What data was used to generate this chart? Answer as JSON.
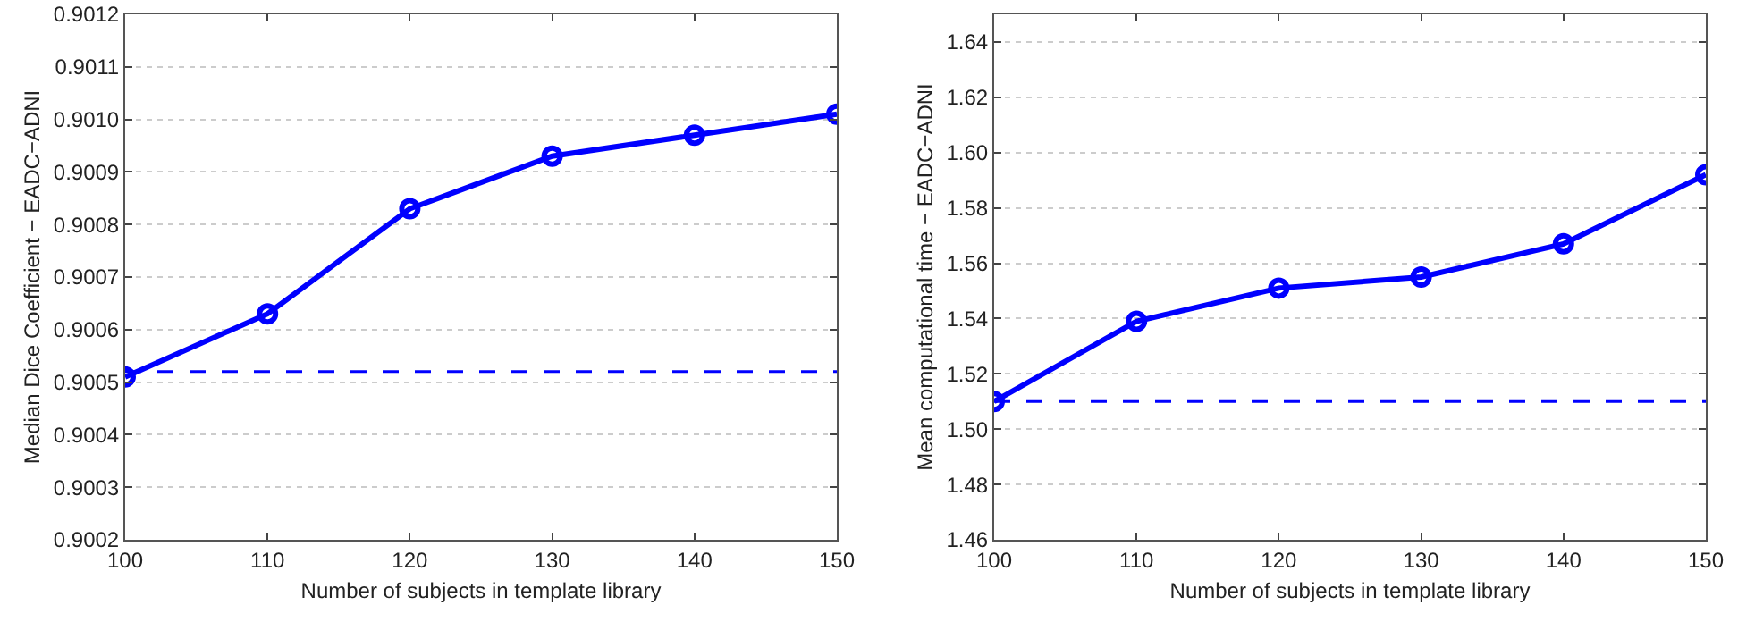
{
  "chart_data": [
    {
      "type": "line",
      "xlabel": "Number of subjects in template library",
      "ylabel": "Median Dice Coefficient − EADC−ADNI",
      "x": [
        100,
        110,
        120,
        130,
        140,
        150
      ],
      "series": [
        {
          "color": "#0000ff",
          "values": [
            0.90051,
            0.90063,
            0.90083,
            0.90093,
            0.90097,
            0.90101
          ]
        }
      ],
      "xlim": [
        100,
        150
      ],
      "xticks": [
        100,
        110,
        120,
        130,
        140,
        150
      ],
      "ylim": [
        0.9002,
        0.9012
      ],
      "yticks": [
        {
          "value": 0.9002,
          "label": "0.9002"
        },
        {
          "value": 0.9003,
          "label": "0.9003"
        },
        {
          "value": 0.9004,
          "label": "0.9004"
        },
        {
          "value": 0.9005,
          "label": "0.9005"
        },
        {
          "value": 0.9006,
          "label": "0.9006"
        },
        {
          "value": 0.9007,
          "label": "0.9007"
        },
        {
          "value": 0.9008,
          "label": "0.9008"
        },
        {
          "value": 0.9009,
          "label": "0.9009"
        },
        {
          "value": 0.901,
          "label": "0.9010"
        },
        {
          "value": 0.9011,
          "label": "0.9011"
        },
        {
          "value": 0.9012,
          "label": "0.9012"
        }
      ],
      "ref_lines": [
        {
          "axis": "y",
          "value": 0.90052,
          "color": "#0000ff",
          "line_style": "dashed"
        }
      ],
      "grid": "y",
      "marker": "circle",
      "line_style": "solid"
    },
    {
      "type": "line",
      "xlabel": "Number of subjects in template library",
      "ylabel": "Mean computational time − EADC−ADNI",
      "x": [
        100,
        110,
        120,
        130,
        140,
        150
      ],
      "series": [
        {
          "color": "#0000ff",
          "values": [
            1.51,
            1.539,
            1.551,
            1.555,
            1.567,
            1.592
          ]
        }
      ],
      "xlim": [
        100,
        150
      ],
      "xticks": [
        100,
        110,
        120,
        130,
        140,
        150
      ],
      "ylim": [
        1.46,
        1.65
      ],
      "yticks": [
        {
          "value": 1.46,
          "label": "1.46"
        },
        {
          "value": 1.48,
          "label": "1.48"
        },
        {
          "value": 1.5,
          "label": "1.50"
        },
        {
          "value": 1.52,
          "label": "1.52"
        },
        {
          "value": 1.54,
          "label": "1.54"
        },
        {
          "value": 1.56,
          "label": "1.56"
        },
        {
          "value": 1.58,
          "label": "1.58"
        },
        {
          "value": 1.6,
          "label": "1.60"
        },
        {
          "value": 1.62,
          "label": "1.62"
        },
        {
          "value": 1.64,
          "label": "1.64"
        }
      ],
      "ref_lines": [
        {
          "axis": "y",
          "value": 1.51,
          "color": "#0000ff",
          "line_style": "dashed"
        }
      ],
      "grid": "y",
      "marker": "circle",
      "line_style": "solid"
    }
  ]
}
